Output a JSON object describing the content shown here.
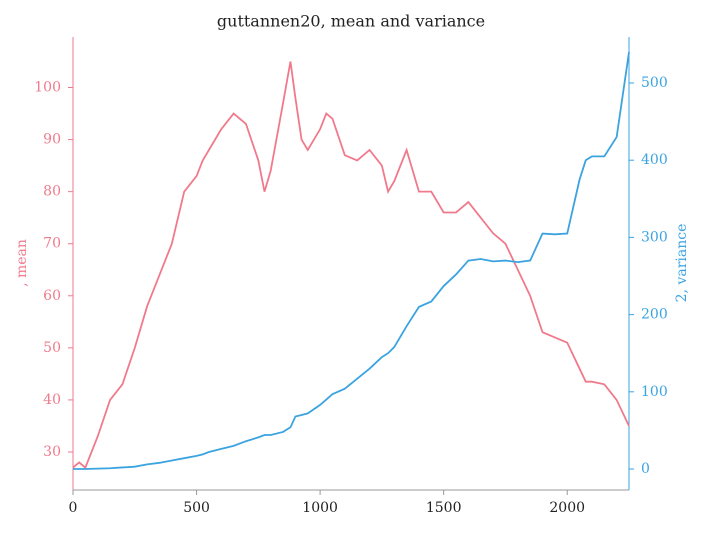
{
  "chart_data": {
    "type": "line",
    "title": "guttannen20, mean and variance",
    "ylabel": ", mean",
    "y2label": "2, variance",
    "x": [
      0,
      25,
      50,
      100,
      150,
      200,
      250,
      300,
      350,
      400,
      450,
      500,
      525,
      550,
      600,
      650,
      700,
      750,
      775,
      800,
      850,
      880,
      900,
      925,
      950,
      1000,
      1025,
      1050,
      1100,
      1150,
      1200,
      1250,
      1275,
      1300,
      1350,
      1400,
      1450,
      1500,
      1550,
      1600,
      1650,
      1700,
      1750,
      1800,
      1850,
      1900,
      1950,
      2000,
      2050,
      2075,
      2100,
      2150,
      2200,
      2250
    ],
    "series": [
      {
        "name": "mean",
        "color": "#f07a8c",
        "axis": "y",
        "values": [
          27,
          28,
          27,
          33,
          40,
          43,
          50,
          58,
          64,
          70,
          80,
          83,
          86,
          88,
          92,
          95,
          93,
          86,
          80,
          84,
          97,
          105,
          98,
          90,
          88,
          92,
          95,
          94,
          87,
          86,
          88,
          85,
          80,
          82,
          88,
          80,
          80,
          76,
          76,
          78,
          75,
          72,
          70,
          65,
          60,
          53,
          52,
          51,
          46,
          43.5,
          43.5,
          43,
          40,
          35
        ]
      },
      {
        "name": "variance",
        "color": "#3ba3e0",
        "axis": "y2",
        "values": [
          0,
          0,
          0,
          0.5,
          1,
          2,
          3,
          6,
          8,
          11,
          14,
          17,
          19,
          22,
          26,
          30,
          36,
          41,
          44,
          44,
          48,
          54,
          68,
          70,
          72,
          83,
          90,
          97,
          104,
          117,
          130,
          145,
          150,
          158,
          185,
          210,
          217,
          237,
          252,
          270,
          272,
          269,
          270,
          268,
          270,
          305,
          304,
          305,
          375,
          400,
          405,
          405,
          430,
          540
        ]
      }
    ],
    "xlim": [
      0,
      2250
    ],
    "xticks": [
      0,
      500,
      1000,
      1500,
      2000
    ],
    "ylim": [
      22.7,
      109.7
    ],
    "yticks": [
      30,
      40,
      50,
      60,
      70,
      80,
      90,
      100
    ],
    "y2lim": [
      -27.2,
      559.6
    ],
    "y2ticks": [
      0,
      100,
      200,
      300,
      400,
      500
    ],
    "grid": false
  }
}
